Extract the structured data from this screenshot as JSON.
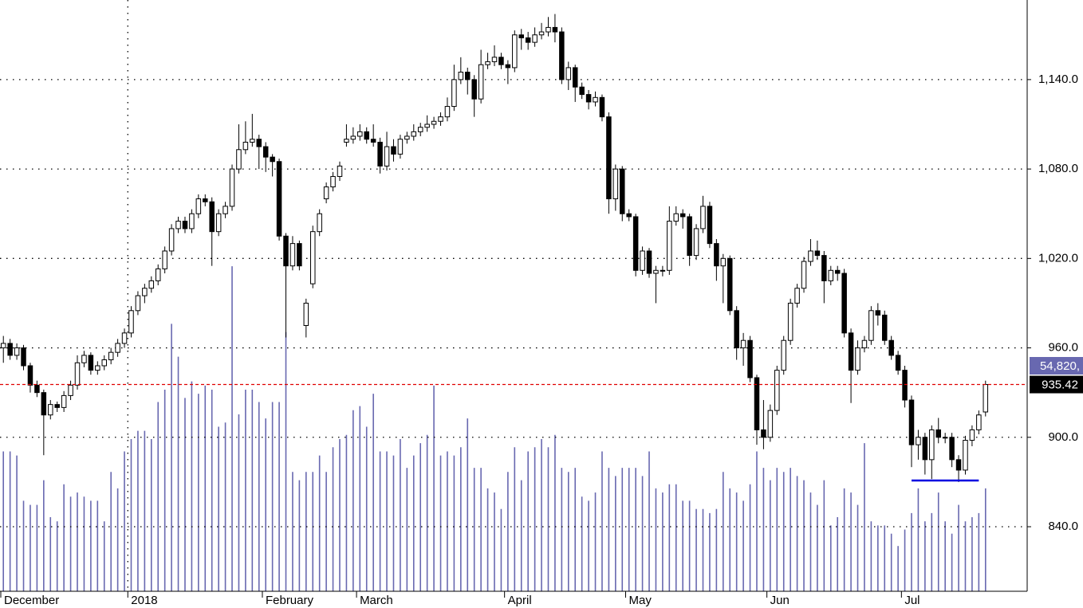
{
  "chart_data": {
    "type": "candlestick",
    "categories": [
      "December",
      null,
      null,
      null,
      null,
      null,
      null,
      null,
      null,
      null,
      null,
      null,
      null,
      null,
      null,
      null,
      null,
      null,
      null,
      "2018",
      null,
      null,
      null,
      null,
      null,
      null,
      null,
      null,
      null,
      null,
      null,
      null,
      null,
      null,
      null,
      null,
      null,
      null,
      null,
      "February",
      null,
      null,
      null,
      null,
      null,
      null,
      null,
      null,
      null,
      null,
      null,
      null,
      null,
      "March",
      null,
      null,
      null,
      null,
      null,
      null,
      null,
      null,
      null,
      null,
      null,
      null,
      null,
      null,
      null,
      null,
      null,
      null,
      null,
      null,
      null,
      "April",
      null,
      null,
      null,
      null,
      null,
      null,
      null,
      null,
      null,
      null,
      null,
      null,
      null,
      null,
      null,
      null,
      null,
      "May",
      null,
      null,
      null,
      null,
      null,
      null,
      null,
      null,
      null,
      null,
      null,
      null,
      null,
      null,
      null,
      null,
      null,
      null,
      null,
      null,
      "Jun",
      null,
      null,
      null,
      null,
      null,
      null,
      null,
      null,
      null,
      null,
      null,
      null,
      null,
      null,
      null,
      null,
      null,
      null,
      null,
      "Jul",
      null,
      null,
      null,
      null,
      null,
      null,
      null,
      null,
      null,
      null,
      null,
      null
    ],
    "ohlc": [
      [
        960,
        968,
        950,
        963
      ],
      [
        963,
        966,
        952,
        955
      ],
      [
        955,
        963,
        952,
        960
      ],
      [
        960,
        962,
        945,
        948
      ],
      [
        948,
        950,
        930,
        935
      ],
      [
        935,
        938,
        927,
        930
      ],
      [
        930,
        932,
        888,
        915
      ],
      [
        915,
        925,
        912,
        922
      ],
      [
        922,
        924,
        917,
        920
      ],
      [
        920,
        931,
        917,
        928
      ],
      [
        928,
        938,
        925,
        935
      ],
      [
        935,
        955,
        932,
        950
      ],
      [
        950,
        958,
        947,
        955
      ],
      [
        955,
        957,
        942,
        945
      ],
      [
        945,
        951,
        942,
        948
      ],
      [
        948,
        955,
        945,
        952
      ],
      [
        952,
        960,
        949,
        957
      ],
      [
        957,
        966,
        954,
        963
      ],
      [
        963,
        973,
        960,
        970
      ],
      [
        970,
        988,
        967,
        985
      ],
      [
        985,
        998,
        982,
        995
      ],
      [
        995,
        1003,
        990,
        1000
      ],
      [
        1000,
        1008,
        997,
        1005
      ],
      [
        1005,
        1016,
        1002,
        1013
      ],
      [
        1013,
        1028,
        1010,
        1025
      ],
      [
        1025,
        1043,
        1022,
        1040
      ],
      [
        1040,
        1048,
        1037,
        1045
      ],
      [
        1045,
        1048,
        1037,
        1040
      ],
      [
        1040,
        1053,
        1037,
        1050
      ],
      [
        1050,
        1063,
        1047,
        1060
      ],
      [
        1060,
        1063,
        1055,
        1058
      ],
      [
        1058,
        1061,
        1015,
        1038
      ],
      [
        1038,
        1053,
        1035,
        1050
      ],
      [
        1050,
        1058,
        1047,
        1055
      ],
      [
        1055,
        1083,
        1052,
        1080
      ],
      [
        1080,
        1110,
        1077,
        1093
      ],
      [
        1093,
        1112,
        1090,
        1098
      ],
      [
        1098,
        1117,
        1095,
        1100
      ],
      [
        1100,
        1103,
        1080,
        1095
      ],
      [
        1095,
        1098,
        1078,
        1088
      ],
      [
        1088,
        1090,
        1075,
        1085
      ],
      [
        1085,
        1087,
        1032,
        1035
      ],
      [
        1035,
        1037,
        967,
        1015
      ],
      [
        1015,
        1035,
        1012,
        1030
      ],
      [
        1030,
        1032,
        1012,
        1015
      ],
      [
        975,
        993,
        967,
        990
      ],
      [
        1003,
        1042,
        1000,
        1038
      ],
      [
        1038,
        1053,
        1035,
        1050
      ],
      [
        1060,
        1071,
        1057,
        1068
      ],
      [
        1068,
        1078,
        1065,
        1075
      ],
      [
        1075,
        1085,
        1072,
        1082
      ],
      [
        1098,
        1110,
        1095,
        1100
      ],
      [
        1100,
        1108,
        1097,
        1102
      ],
      [
        1102,
        1110,
        1099,
        1105
      ],
      [
        1105,
        1108,
        1097,
        1100
      ],
      [
        1100,
        1110,
        1095,
        1098
      ],
      [
        1098,
        1101,
        1077,
        1082
      ],
      [
        1082,
        1105,
        1079,
        1095
      ],
      [
        1095,
        1100,
        1085,
        1090
      ],
      [
        1090,
        1103,
        1087,
        1100
      ],
      [
        1100,
        1105,
        1097,
        1102
      ],
      [
        1102,
        1110,
        1099,
        1105
      ],
      [
        1105,
        1111,
        1102,
        1108
      ],
      [
        1108,
        1116,
        1105,
        1110
      ],
      [
        1110,
        1115,
        1107,
        1112
      ],
      [
        1112,
        1118,
        1109,
        1115
      ],
      [
        1115,
        1128,
        1112,
        1122
      ],
      [
        1122,
        1150,
        1119,
        1140
      ],
      [
        1140,
        1155,
        1137,
        1145
      ],
      [
        1145,
        1148,
        1130,
        1140
      ],
      [
        1140,
        1143,
        1115,
        1127
      ],
      [
        1127,
        1160,
        1124,
        1150
      ],
      [
        1150,
        1158,
        1147,
        1152
      ],
      [
        1152,
        1163,
        1149,
        1155
      ],
      [
        1155,
        1158,
        1147,
        1150
      ],
      [
        1150,
        1153,
        1137,
        1148
      ],
      [
        1148,
        1173,
        1145,
        1170
      ],
      [
        1170,
        1174,
        1160,
        1168
      ],
      [
        1168,
        1172,
        1160,
        1165
      ],
      [
        1165,
        1175,
        1162,
        1170
      ],
      [
        1170,
        1178,
        1167,
        1172
      ],
      [
        1172,
        1182,
        1169,
        1175
      ],
      [
        1175,
        1184,
        1165,
        1172
      ],
      [
        1172,
        1175,
        1137,
        1140
      ],
      [
        1140,
        1152,
        1133,
        1148
      ],
      [
        1148,
        1150,
        1125,
        1135
      ],
      [
        1135,
        1138,
        1127,
        1130
      ],
      [
        1130,
        1133,
        1120,
        1125
      ],
      [
        1125,
        1132,
        1122,
        1128
      ],
      [
        1128,
        1130,
        1112,
        1115
      ],
      [
        1115,
        1118,
        1050,
        1060
      ],
      [
        1060,
        1083,
        1052,
        1080
      ],
      [
        1080,
        1082,
        1045,
        1050
      ],
      [
        1050,
        1053,
        1045,
        1048
      ],
      [
        1048,
        1050,
        1008,
        1012
      ],
      [
        1012,
        1028,
        1009,
        1025
      ],
      [
        1025,
        1027,
        1007,
        1010
      ],
      [
        1010,
        1015,
        990,
        1012
      ],
      [
        1012,
        1015,
        1008,
        1012
      ],
      [
        1012,
        1055,
        1009,
        1045
      ],
      [
        1045,
        1055,
        1042,
        1050
      ],
      [
        1050,
        1053,
        1040,
        1048
      ],
      [
        1048,
        1050,
        1015,
        1022
      ],
      [
        1022,
        1043,
        1019,
        1040
      ],
      [
        1040,
        1062,
        1037,
        1055
      ],
      [
        1055,
        1058,
        1027,
        1030
      ],
      [
        1030,
        1033,
        1005,
        1015
      ],
      [
        1015,
        1023,
        990,
        1020
      ],
      [
        1020,
        1022,
        982,
        985
      ],
      [
        985,
        988,
        952,
        960
      ],
      [
        960,
        970,
        948,
        965
      ],
      [
        965,
        968,
        937,
        940
      ],
      [
        940,
        942,
        895,
        905
      ],
      [
        905,
        925,
        892,
        900
      ],
      [
        900,
        922,
        897,
        918
      ],
      [
        918,
        948,
        915,
        945
      ],
      [
        945,
        968,
        942,
        965
      ],
      [
        965,
        993,
        962,
        990
      ],
      [
        990,
        1003,
        987,
        1000
      ],
      [
        1000,
        1021,
        997,
        1018
      ],
      [
        1018,
        1033,
        1015,
        1025
      ],
      [
        1025,
        1032,
        1019,
        1022
      ],
      [
        1022,
        1025,
        990,
        1005
      ],
      [
        1005,
        1015,
        1002,
        1012
      ],
      [
        1012,
        1015,
        1005,
        1010
      ],
      [
        1010,
        1013,
        967,
        970
      ],
      [
        970,
        973,
        923,
        945
      ],
      [
        945,
        965,
        942,
        960
      ],
      [
        960,
        968,
        957,
        965
      ],
      [
        965,
        988,
        962,
        985
      ],
      [
        985,
        990,
        975,
        982
      ],
      [
        982,
        985,
        962,
        965
      ],
      [
        965,
        968,
        952,
        955
      ],
      [
        955,
        958,
        942,
        945
      ],
      [
        945,
        948,
        920,
        925
      ],
      [
        925,
        928,
        880,
        895
      ],
      [
        895,
        905,
        885,
        900
      ],
      [
        900,
        903,
        875,
        885
      ],
      [
        885,
        908,
        872,
        905
      ],
      [
        905,
        913,
        896,
        900
      ],
      [
        900,
        903,
        896,
        900
      ],
      [
        900,
        903,
        880,
        885
      ],
      [
        885,
        888,
        870,
        878
      ],
      [
        878,
        901,
        875,
        898
      ],
      [
        898,
        908,
        894,
        905
      ],
      [
        905,
        918,
        902,
        915
      ],
      [
        917,
        938,
        914,
        935.42
      ]
    ],
    "volume": [
      34000,
      34000,
      33000,
      22000,
      21000,
      21000,
      27000,
      18000,
      17000,
      26000,
      23000,
      24000,
      23000,
      22000,
      22000,
      17000,
      29000,
      25000,
      34000,
      37000,
      39000,
      39000,
      37000,
      46000,
      49000,
      65000,
      57000,
      47000,
      51000,
      48000,
      50000,
      49000,
      40000,
      41000,
      79000,
      43000,
      49000,
      49000,
      46000,
      42000,
      46000,
      46000,
      63000,
      29000,
      27000,
      29000,
      29000,
      33000,
      29000,
      35000,
      37000,
      38000,
      44000,
      45000,
      40000,
      48000,
      34000,
      34000,
      33000,
      37000,
      30000,
      33000,
      36000,
      38000,
      50000,
      33000,
      34000,
      33000,
      35000,
      42000,
      30000,
      30000,
      25000,
      24000,
      20000,
      29000,
      35000,
      27000,
      34000,
      35000,
      37000,
      35000,
      38000,
      30000,
      29000,
      30000,
      23000,
      22000,
      24000,
      34000,
      30000,
      28000,
      30000,
      30000,
      30000,
      28000,
      34000,
      25000,
      24000,
      26000,
      26000,
      22000,
      22000,
      20000,
      20000,
      19000,
      20000,
      29000,
      25000,
      24000,
      22000,
      26000,
      34000,
      30000,
      27000,
      30000,
      29000,
      30000,
      28000,
      27000,
      24000,
      21000,
      27000,
      16000,
      18000,
      25000,
      24000,
      21000,
      36000,
      17000,
      16000,
      16000,
      14000,
      11000,
      15000,
      19000,
      25000,
      17000,
      19000,
      24000,
      17000,
      14000,
      21000,
      17000,
      18000,
      19000,
      25000
    ],
    "volume_color": "#6868b0",
    "vlim": [
      0,
      143700
    ],
    "volume_label": "54,820,",
    "last_price": 935.42,
    "last_price_color": "#e00000",
    "support": {
      "value": 871,
      "from": 135,
      "to": 145,
      "color": "#0000e0"
    },
    "ylim": [
      796.7,
      1193.4
    ],
    "yticks": [
      {
        "value": 840,
        "label": "840.0"
      },
      {
        "value": 900,
        "label": "900.0"
      },
      {
        "value": 960,
        "label": "960.0"
      },
      {
        "value": 1020,
        "label": "1,020.0"
      },
      {
        "value": 1080,
        "label": "1,080.0"
      },
      {
        "value": 1140,
        "label": "1,140.0"
      }
    ],
    "grid": true
  }
}
